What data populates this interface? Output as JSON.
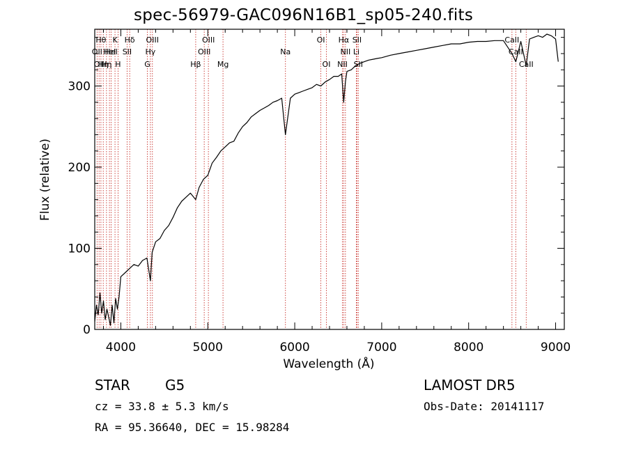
{
  "title": "spec-56979-GAC096N16B1_sp05-240.fits",
  "chart_data": {
    "type": "line",
    "xlabel": "Wavelength (Å)",
    "ylabel": "Flux (relative)",
    "xlim": [
      3700,
      9100
    ],
    "ylim": [
      0,
      370
    ],
    "xticks": [
      4000,
      5000,
      6000,
      7000,
      8000,
      9000
    ],
    "yticks": [
      0,
      100,
      200,
      300
    ],
    "grid": false,
    "series": [
      {
        "x": [
          3700,
          3720,
          3740,
          3760,
          3780,
          3800,
          3820,
          3840,
          3860,
          3880,
          3900,
          3920,
          3940,
          3960,
          3980,
          4000,
          4050,
          4100,
          4150,
          4200,
          4250,
          4300,
          4340,
          4360,
          4400,
          4450,
          4500,
          4550,
          4600,
          4650,
          4700,
          4750,
          4800,
          4861,
          4900,
          4950,
          5000,
          5050,
          5100,
          5150,
          5200,
          5250,
          5300,
          5350,
          5400,
          5450,
          5500,
          5550,
          5600,
          5650,
          5700,
          5750,
          5800,
          5850,
          5893,
          5950,
          6000,
          6050,
          6100,
          6150,
          6200,
          6250,
          6300,
          6350,
          6400,
          6450,
          6500,
          6540,
          6563,
          6583,
          6600,
          6650,
          6700,
          6750,
          6800,
          6850,
          6900,
          6950,
          7000,
          7100,
          7200,
          7300,
          7400,
          7500,
          7600,
          7700,
          7800,
          7900,
          8000,
          8100,
          8200,
          8300,
          8400,
          8498,
          8542,
          8600,
          8662,
          8700,
          8750,
          8800,
          8850,
          8900,
          8950,
          9000,
          9030
        ],
        "y": [
          10,
          30,
          18,
          45,
          20,
          35,
          12,
          25,
          15,
          5,
          30,
          8,
          38,
          25,
          40,
          65,
          70,
          75,
          80,
          78,
          85,
          88,
          60,
          95,
          108,
          112,
          122,
          128,
          138,
          150,
          158,
          163,
          168,
          160,
          175,
          185,
          190,
          205,
          212,
          220,
          225,
          230,
          232,
          242,
          250,
          255,
          262,
          266,
          270,
          273,
          276,
          280,
          282,
          285,
          240,
          285,
          290,
          292,
          294,
          296,
          298,
          302,
          300,
          305,
          308,
          312,
          312,
          315,
          280,
          305,
          318,
          320,
          325,
          328,
          330,
          332,
          333,
          334,
          335,
          338,
          340,
          342,
          344,
          346,
          348,
          350,
          352,
          352,
          354,
          355,
          355,
          356,
          356,
          340,
          330,
          355,
          325,
          358,
          360,
          362,
          360,
          364,
          362,
          358,
          330
        ]
      }
    ],
    "lines": [
      {
        "w": 3727,
        "label": "OII",
        "row": 2
      },
      {
        "w": 3750,
        "label": "OII",
        "row": 3
      },
      {
        "w": 3771,
        "label": "Hθ",
        "row": 1
      },
      {
        "w": 3798,
        "label": "Hη",
        "row": 3
      },
      {
        "w": 3835,
        "label": "Hη",
        "row": 3
      },
      {
        "w": 3869,
        "label": "HeI",
        "row": 2
      },
      {
        "w": 3889,
        "label": "HeI",
        "row": 2
      },
      {
        "w": 3933,
        "label": "K",
        "row": 1
      },
      {
        "w": 3968,
        "label": "H",
        "row": 3
      },
      {
        "w": 4072,
        "label": "SII",
        "row": 2
      },
      {
        "w": 4102,
        "label": "Hδ",
        "row": 1
      },
      {
        "w": 4305,
        "label": "G",
        "row": 3
      },
      {
        "w": 4340,
        "label": "Hγ",
        "row": 2
      },
      {
        "w": 4363,
        "label": "OIII",
        "row": 1
      },
      {
        "w": 4861,
        "label": "Hβ",
        "row": 3
      },
      {
        "w": 4959,
        "label": "OIII",
        "row": 2
      },
      {
        "w": 5007,
        "label": "OIII",
        "row": 1
      },
      {
        "w": 5175,
        "label": "Mg",
        "row": 3
      },
      {
        "w": 5893,
        "label": "Na",
        "row": 2
      },
      {
        "w": 6300,
        "label": "OI",
        "row": 1
      },
      {
        "w": 6364,
        "label": "OI",
        "row": 3
      },
      {
        "w": 6548,
        "label": "NII",
        "row": 3
      },
      {
        "w": 6563,
        "label": "Hα",
        "row": 1
      },
      {
        "w": 6583,
        "label": "NII",
        "row": 2
      },
      {
        "w": 6708,
        "label": "Li",
        "row": 2
      },
      {
        "w": 6716,
        "label": "SII",
        "row": 1
      },
      {
        "w": 6731,
        "label": "SII",
        "row": 3
      },
      {
        "w": 8498,
        "label": "CaII",
        "row": 1
      },
      {
        "w": 8542,
        "label": "CaII",
        "row": 2
      },
      {
        "w": 8662,
        "label": "CaII",
        "row": 3
      }
    ]
  },
  "footer": {
    "class_label": "STAR",
    "subclass": "G5",
    "cz": "cz = 33.8 ± 5.3 km/s",
    "survey": "LAMOST  DR5",
    "obs_date": "Obs-Date: 20141117",
    "coords": "RA =  95.36640, DEC =  15.98284"
  }
}
